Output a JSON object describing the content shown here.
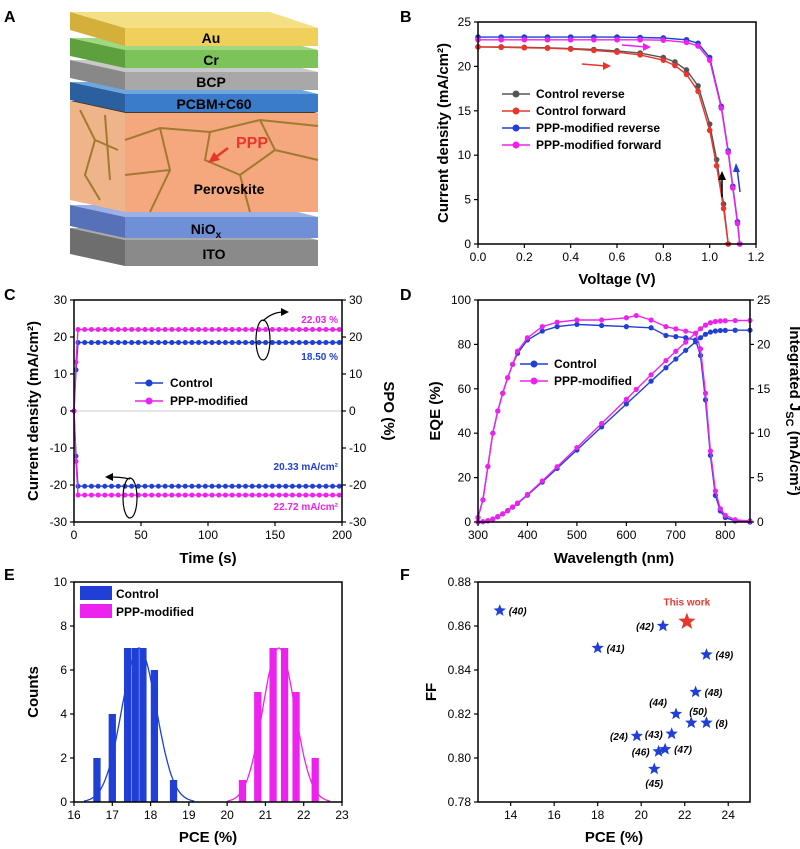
{
  "panel_labels": [
    "A",
    "B",
    "C",
    "D",
    "E",
    "F"
  ],
  "colors": {
    "control": "#1f3fd6",
    "ppp": "#ee22ee",
    "red": "#e8362c",
    "gray": "#555555"
  },
  "chart_data": [
    {
      "panel": "A",
      "type": "other",
      "layers": [
        "Au",
        "Cr",
        "BCP",
        "PCBM+C60",
        "Perovskite",
        "NiO",
        "ITO"
      ],
      "nio_subscript": "x",
      "annotation": "PPP"
    },
    {
      "panel": "B",
      "type": "line",
      "xlabel": "Voltage (V)",
      "ylabel": "Current density (mA/cm²)",
      "xlim": [
        0,
        1.2
      ],
      "ylim": [
        0,
        25
      ],
      "xticks": [
        "0.0",
        "0.2",
        "0.4",
        "0.6",
        "0.8",
        "1.0",
        "1.2"
      ],
      "yticks": [
        "0",
        "5",
        "10",
        "15",
        "20",
        "25"
      ],
      "legend_position": "center-right",
      "series": [
        {
          "name": "Control reverse",
          "color": "#555555",
          "x": [
            0,
            0.1,
            0.2,
            0.3,
            0.4,
            0.5,
            0.6,
            0.7,
            0.8,
            0.85,
            0.9,
            0.95,
            1.0,
            1.03,
            1.06,
            1.08
          ],
          "y": [
            22.2,
            22.2,
            22.15,
            22.1,
            22.0,
            21.9,
            21.75,
            21.5,
            21.0,
            20.5,
            19.6,
            17.8,
            13.5,
            9.5,
            4.5,
            0
          ]
        },
        {
          "name": "Control forward",
          "color": "#e8362c",
          "x": [
            0,
            0.1,
            0.2,
            0.3,
            0.4,
            0.5,
            0.6,
            0.7,
            0.8,
            0.85,
            0.9,
            0.95,
            1.0,
            1.03,
            1.06,
            1.08
          ],
          "y": [
            22.2,
            22.15,
            22.1,
            22.05,
            21.95,
            21.8,
            21.6,
            21.3,
            20.7,
            20.1,
            19.1,
            17.2,
            12.8,
            8.8,
            4.0,
            0
          ]
        },
        {
          "name": "PPP-modified reverse",
          "color": "#1f3fd6",
          "x": [
            0,
            0.1,
            0.2,
            0.3,
            0.4,
            0.5,
            0.6,
            0.7,
            0.8,
            0.9,
            0.95,
            1.0,
            1.05,
            1.08,
            1.1,
            1.12,
            1.13
          ],
          "y": [
            23.3,
            23.3,
            23.3,
            23.3,
            23.3,
            23.3,
            23.3,
            23.25,
            23.2,
            23.0,
            22.6,
            21.0,
            15.5,
            10.5,
            6.5,
            2.5,
            0
          ]
        },
        {
          "name": "PPP-modified forward",
          "color": "#ee22ee",
          "x": [
            0,
            0.1,
            0.2,
            0.3,
            0.4,
            0.5,
            0.6,
            0.7,
            0.8,
            0.9,
            0.95,
            1.0,
            1.05,
            1.08,
            1.1,
            1.12,
            1.13
          ],
          "y": [
            23.0,
            23.0,
            23.0,
            23.0,
            23.0,
            23.0,
            23.0,
            23.0,
            22.95,
            22.7,
            22.3,
            20.7,
            15.3,
            10.3,
            6.3,
            2.3,
            0
          ]
        }
      ]
    },
    {
      "panel": "C",
      "type": "line",
      "xlabel": "Time (s)",
      "ylabel": "Current density (mA/cm²)",
      "y2label": "SPO (%)",
      "xlim": [
        0,
        200
      ],
      "ylim": [
        -30,
        30
      ],
      "y2lim": [
        -30,
        30
      ],
      "xticks": [
        "0",
        "50",
        "100",
        "150",
        "200"
      ],
      "yticks": [
        "-30",
        "-20",
        "-10",
        "0",
        "10",
        "20",
        "30"
      ],
      "legend_position": "center",
      "series": [
        {
          "name": "Control",
          "color": "#1f3fd6",
          "pce_level": 18.5,
          "jsc_level": -20.33
        },
        {
          "name": "PPP-modified",
          "color": "#ee22ee",
          "pce_level": 22.03,
          "jsc_level": -22.72
        }
      ],
      "annotations": [
        "22.03 %",
        "18.50 %",
        "20.33 mA/cm²",
        "22.72 mA/cm²"
      ]
    },
    {
      "panel": "D",
      "type": "line",
      "xlabel": "Wavelength (nm)",
      "ylabel": "EQE (%)",
      "y2label_main": "Integrated J",
      "y2label_sub": "SC",
      "y2label_unit": " (mA/cm²)",
      "xlim": [
        300,
        850
      ],
      "ylim": [
        0,
        100
      ],
      "y2lim": [
        0,
        25
      ],
      "xticks": [
        "300",
        "400",
        "500",
        "600",
        "700",
        "800"
      ],
      "yticks": [
        "0",
        "20",
        "40",
        "60",
        "80",
        "100"
      ],
      "y2ticks": [
        "0",
        "5",
        "10",
        "15",
        "20",
        "25"
      ],
      "legend_position": "center",
      "series": [
        {
          "name": "Control",
          "color": "#1f3fd6",
          "eqe_x": [
            300,
            310,
            320,
            330,
            340,
            350,
            360,
            370,
            380,
            400,
            430,
            460,
            500,
            550,
            600,
            650,
            680,
            700,
            720,
            740,
            750,
            760,
            770,
            780,
            790,
            800,
            820,
            850
          ],
          "eqe_y": [
            2,
            10,
            25,
            40,
            50,
            58,
            65,
            71,
            76,
            82,
            86,
            88,
            89,
            88.5,
            88,
            87.5,
            84,
            83.5,
            83,
            82,
            75,
            55,
            30,
            12,
            5,
            2,
            0.5,
            0
          ],
          "jsc_final": 21.6
        },
        {
          "name": "PPP-modified",
          "color": "#ee22ee",
          "eqe_x": [
            300,
            310,
            320,
            330,
            340,
            350,
            360,
            370,
            380,
            400,
            430,
            460,
            500,
            550,
            600,
            620,
            650,
            680,
            700,
            720,
            740,
            750,
            760,
            770,
            780,
            790,
            800,
            820,
            850
          ],
          "eqe_y": [
            2,
            10,
            25,
            40,
            50,
            58,
            65,
            71,
            77,
            83,
            88,
            90,
            91,
            91,
            92,
            93,
            91,
            88,
            87,
            86,
            85,
            78,
            58,
            32,
            14,
            6,
            3,
            1,
            0.5
          ],
          "jsc_final": 22.7
        }
      ]
    },
    {
      "panel": "E",
      "type": "bar",
      "xlabel": "PCE (%)",
      "ylabel": "Counts",
      "xlim": [
        16,
        23
      ],
      "ylim": [
        0,
        10
      ],
      "xticks": [
        "16",
        "17",
        "18",
        "19",
        "20",
        "21",
        "22",
        "23"
      ],
      "yticks": [
        "0",
        "2",
        "4",
        "6",
        "8",
        "10"
      ],
      "legend_position": "top-left",
      "series": [
        {
          "name": "Control",
          "color": "#1f3fd6",
          "x": [
            16.6,
            17.0,
            17.4,
            17.6,
            17.8,
            18.1,
            18.6
          ],
          "values": [
            2,
            4,
            7,
            7,
            7,
            6,
            1
          ],
          "fit_mean": 17.7,
          "fit_sigma": 0.45,
          "fit_peak": 7
        },
        {
          "name": "PPP-modified",
          "color": "#ee22ee",
          "x": [
            20.4,
            20.8,
            21.2,
            21.5,
            21.8,
            22.3
          ],
          "values": [
            1,
            5,
            7,
            7,
            5,
            2
          ],
          "fit_mean": 21.35,
          "fit_sigma": 0.42,
          "fit_peak": 7
        }
      ]
    },
    {
      "panel": "F",
      "type": "scatter",
      "xlabel": "PCE (%)",
      "ylabel": "FF",
      "xlim": [
        12.5,
        25
      ],
      "ylim": [
        0.78,
        0.88
      ],
      "xticks": [
        "14",
        "16",
        "18",
        "20",
        "22",
        "24"
      ],
      "yticks": [
        "0.78",
        "0.80",
        "0.82",
        "0.84",
        "0.86",
        "0.88"
      ],
      "points": [
        {
          "label": "(40)",
          "x": 13.5,
          "y": 0.867
        },
        {
          "label": "(41)",
          "x": 18.0,
          "y": 0.85
        },
        {
          "label": "(42)",
          "x": 21.0,
          "y": 0.86
        },
        {
          "label": "(49)",
          "x": 23.0,
          "y": 0.847
        },
        {
          "label": "(48)",
          "x": 22.5,
          "y": 0.83
        },
        {
          "label": "(44)",
          "x": 21.6,
          "y": 0.82
        },
        {
          "label": "(50)",
          "x": 22.3,
          "y": 0.816
        },
        {
          "label": "(8)",
          "x": 23.0,
          "y": 0.816
        },
        {
          "label": "(43)",
          "x": 21.4,
          "y": 0.811
        },
        {
          "label": "(24)",
          "x": 19.8,
          "y": 0.81
        },
        {
          "label": "(46)",
          "x": 20.8,
          "y": 0.803
        },
        {
          "label": "(47)",
          "x": 21.1,
          "y": 0.804
        },
        {
          "label": "(45)",
          "x": 20.6,
          "y": 0.795
        }
      ],
      "highlight": {
        "label": "This work",
        "x": 22.1,
        "y": 0.862,
        "color": "#e8362c"
      }
    }
  ]
}
